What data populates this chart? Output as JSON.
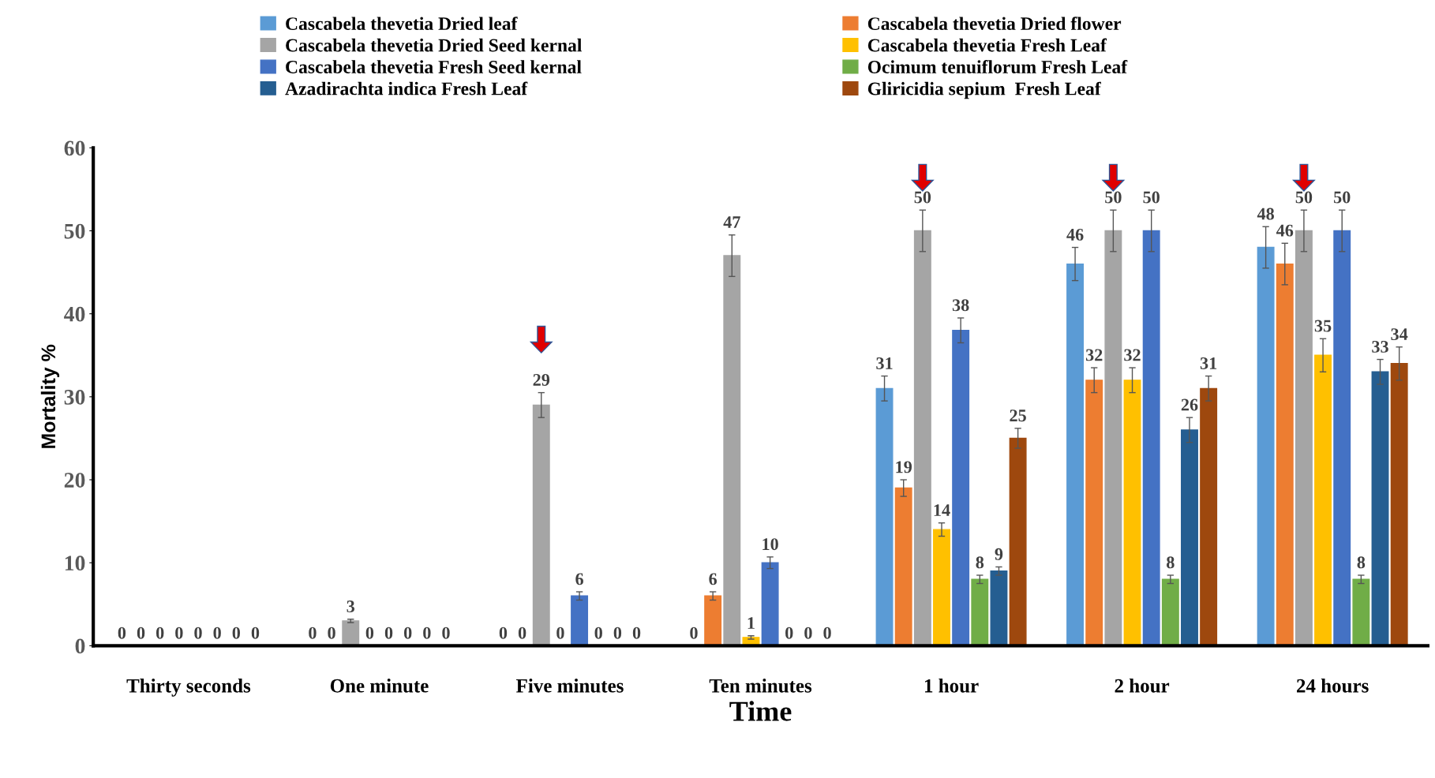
{
  "chart_data": {
    "type": "bar",
    "xlabel": "Time",
    "ylabel": "Mortality %",
    "categories": [
      "Thirty seconds",
      "One minute",
      "Five minutes",
      "Ten minutes",
      "1 hour",
      "2 hour",
      "24 hours"
    ],
    "series": [
      {
        "name": "Cascabela thevetia Dried leaf",
        "color": "#5b9bd5",
        "values": [
          0,
          0,
          0,
          0,
          31,
          46,
          48
        ],
        "errors": [
          null,
          null,
          null,
          null,
          1.5,
          2,
          2.5
        ]
      },
      {
        "name": "Cascabela thevetia Dried flower",
        "color": "#ed7d31",
        "values": [
          0,
          0,
          0,
          6,
          19,
          32,
          46
        ],
        "errors": [
          null,
          null,
          null,
          0.5,
          1,
          1.5,
          2.5
        ]
      },
      {
        "name": "Cascabela thevetia Dried Seed kernal",
        "color": "#a5a5a5",
        "values": [
          0,
          3,
          29,
          47,
          50,
          50,
          50
        ],
        "errors": [
          null,
          0.2,
          1.5,
          2.5,
          2.5,
          2.5,
          2.5
        ]
      },
      {
        "name": "Cascabela thevetia Fresh Leaf",
        "color": "#ffc000",
        "values": [
          0,
          0,
          0,
          1,
          14,
          32,
          35
        ],
        "errors": [
          null,
          null,
          null,
          0.2,
          0.8,
          1.5,
          2
        ]
      },
      {
        "name": "Cascabela thevetia Fresh Seed kernal",
        "color": "#4472c4",
        "values": [
          0,
          0,
          6,
          10,
          38,
          50,
          50
        ],
        "errors": [
          null,
          null,
          0.5,
          0.7,
          1.5,
          2.5,
          2.5
        ]
      },
      {
        "name": "Ocimum tenuiflorum Fresh Leaf",
        "color": "#70ad47",
        "values": [
          0,
          0,
          0,
          0,
          8,
          8,
          8
        ],
        "errors": [
          null,
          null,
          null,
          null,
          0.5,
          0.5,
          0.5
        ]
      },
      {
        "name": "Azadirachta indica Fresh Leaf",
        "color": "#255e91",
        "values": [
          0,
          0,
          0,
          0,
          9,
          26,
          33
        ],
        "errors": [
          null,
          null,
          null,
          null,
          0.5,
          1.5,
          1.5
        ]
      },
      {
        "name": "Gliricidia sepium  Fresh Leaf",
        "color": "#9e480e",
        "values": [
          0,
          0,
          0,
          0,
          25,
          31,
          34
        ],
        "errors": [
          null,
          null,
          null,
          null,
          1.2,
          1.5,
          2
        ]
      }
    ],
    "ylim": [
      0,
      60
    ],
    "yticks": [
      0,
      10,
      20,
      30,
      40,
      50,
      60
    ],
    "grid": false,
    "legend": "top",
    "data_labels": true
  }
}
